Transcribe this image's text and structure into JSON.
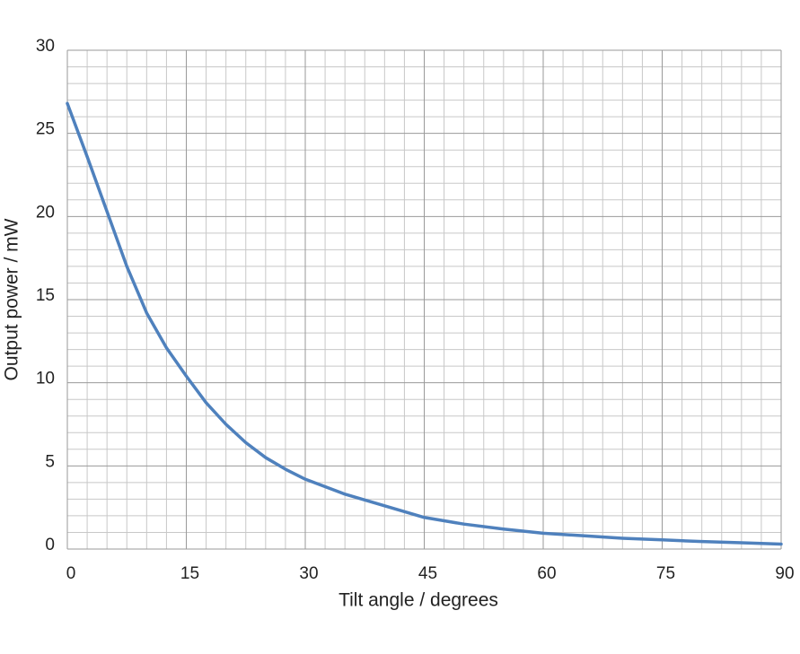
{
  "chart_data": {
    "type": "line",
    "x_label": "Tilt angle / degrees",
    "y_label": "Output power / mW",
    "x": [
      0,
      2.5,
      5,
      7.5,
      10,
      12.5,
      15,
      17.5,
      20,
      22.5,
      25,
      27.5,
      30,
      35,
      40,
      45,
      50,
      55,
      60,
      65,
      70,
      75,
      80,
      85,
      90
    ],
    "series": [
      {
        "color": "#4f81bd",
        "values": [
          26.8,
          23.6,
          20.3,
          17.0,
          14.2,
          12.1,
          10.4,
          8.8,
          7.5,
          6.4,
          5.5,
          4.8,
          4.2,
          3.3,
          2.6,
          1.9,
          1.5,
          1.2,
          0.95,
          0.8,
          0.65,
          0.55,
          0.45,
          0.38,
          0.3
        ]
      }
    ],
    "xlim": [
      0,
      90
    ],
    "xticks": [
      0,
      15,
      30,
      45,
      60,
      75,
      90
    ],
    "ylim": [
      0,
      30
    ],
    "yticks": [
      0,
      5,
      10,
      15,
      20,
      25,
      30
    ],
    "grid": true
  }
}
